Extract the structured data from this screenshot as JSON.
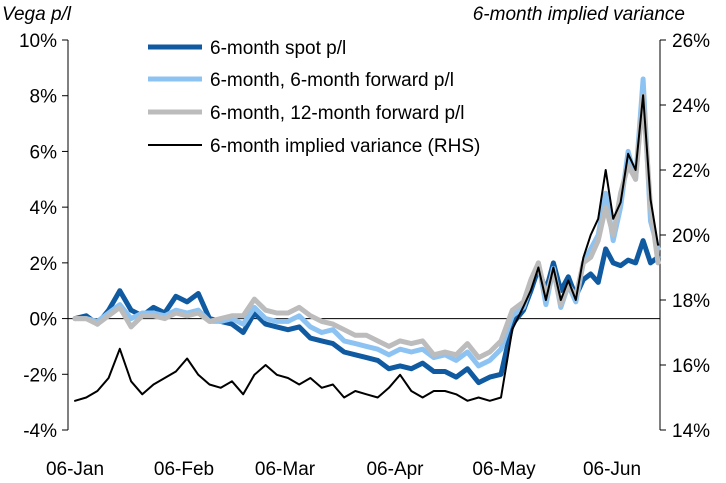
{
  "chart_data": {
    "type": "line",
    "title_left": "Vega p/l",
    "title_right": "6-month implied variance",
    "x_tick_labels": [
      "06-Jan",
      "06-Feb",
      "06-Mar",
      "06-Apr",
      "06-May",
      "06-Jun"
    ],
    "y_left": {
      "min": -0.04,
      "max": 0.1,
      "ticks": [
        -0.04,
        -0.02,
        0,
        0.02,
        0.04,
        0.06,
        0.08,
        0.1
      ],
      "tick_labels": [
        "-4%",
        "-2%",
        "0%",
        "2%",
        "4%",
        "6%",
        "8%",
        "10%"
      ]
    },
    "y_right": {
      "min": 0.14,
      "max": 0.26,
      "ticks": [
        0.14,
        0.16,
        0.18,
        0.2,
        0.22,
        0.24,
        0.26
      ],
      "tick_labels": [
        "14%",
        "16%",
        "18%",
        "20%",
        "22%",
        "24%",
        "26%"
      ]
    },
    "grid": false,
    "legend_position": "top-center",
    "x_range_days": [
      0,
      156
    ],
    "series": [
      {
        "name": "6-month spot p/l",
        "axis": "left",
        "color": "#0f5aa0",
        "stroke_width": 5,
        "x": [
          0,
          3,
          6,
          9,
          12,
          15,
          18,
          21,
          24,
          27,
          30,
          33,
          36,
          39,
          42,
          45,
          48,
          51,
          54,
          57,
          60,
          63,
          66,
          69,
          72,
          75,
          78,
          81,
          84,
          87,
          90,
          93,
          96,
          99,
          102,
          105,
          108,
          111,
          114,
          117,
          120,
          122,
          124,
          126,
          128,
          130,
          132,
          134,
          136,
          138,
          140,
          142,
          144,
          146,
          148,
          150,
          152,
          154,
          156
        ],
        "values": [
          0,
          0.001,
          -0.002,
          0.003,
          0.01,
          0.003,
          0.001,
          0.004,
          0.002,
          0.008,
          0.006,
          0.009,
          0,
          -0.001,
          -0.002,
          -0.005,
          0.002,
          -0.002,
          -0.003,
          -0.004,
          -0.003,
          -0.007,
          -0.008,
          -0.009,
          -0.012,
          -0.013,
          -0.014,
          -0.015,
          -0.018,
          -0.017,
          -0.018,
          -0.016,
          -0.019,
          -0.019,
          -0.021,
          -0.018,
          -0.023,
          -0.021,
          -0.02,
          -0.002,
          0.003,
          0.01,
          0.018,
          0.01,
          0.02,
          0.01,
          0.015,
          0.008,
          0.014,
          0.016,
          0.013,
          0.025,
          0.02,
          0.019,
          0.021,
          0.02,
          0.028,
          0.02,
          0.022
        ]
      },
      {
        "name": "6-month, 6-month forward p/l",
        "axis": "left",
        "color": "#8cc3f2",
        "stroke_width": 5,
        "x": [
          0,
          3,
          6,
          9,
          12,
          15,
          18,
          21,
          24,
          27,
          30,
          33,
          36,
          39,
          42,
          45,
          48,
          51,
          54,
          57,
          60,
          63,
          66,
          69,
          72,
          75,
          78,
          81,
          84,
          87,
          90,
          93,
          96,
          99,
          102,
          105,
          108,
          111,
          114,
          117,
          120,
          122,
          124,
          126,
          128,
          130,
          132,
          134,
          136,
          138,
          140,
          142,
          144,
          146,
          148,
          150,
          152,
          154,
          156
        ],
        "values": [
          0,
          0,
          -0.001,
          0.002,
          0.005,
          0,
          0.002,
          0.002,
          0.001,
          0.003,
          0.002,
          0.003,
          -0.001,
          -0.001,
          0,
          -0.002,
          0.004,
          0,
          -0.001,
          -0.001,
          0.001,
          -0.003,
          -0.005,
          -0.004,
          -0.008,
          -0.009,
          -0.01,
          -0.011,
          -0.013,
          -0.011,
          -0.012,
          -0.011,
          -0.014,
          -0.013,
          -0.015,
          -0.012,
          -0.017,
          -0.015,
          -0.011,
          0.001,
          0.004,
          0.012,
          0.02,
          0.005,
          0.018,
          0.004,
          0.012,
          0.006,
          0.02,
          0.025,
          0.03,
          0.045,
          0.028,
          0.04,
          0.06,
          0.05,
          0.086,
          0.035,
          0.025
        ]
      },
      {
        "name": "6-month, 12-month forward p/l",
        "axis": "left",
        "color": "#bcbcbc",
        "stroke_width": 5,
        "x": [
          0,
          3,
          6,
          9,
          12,
          15,
          18,
          21,
          24,
          27,
          30,
          33,
          36,
          39,
          42,
          45,
          48,
          51,
          54,
          57,
          60,
          63,
          66,
          69,
          72,
          75,
          78,
          81,
          84,
          87,
          90,
          93,
          96,
          99,
          102,
          105,
          108,
          111,
          114,
          117,
          120,
          122,
          124,
          126,
          128,
          130,
          132,
          134,
          136,
          138,
          140,
          142,
          144,
          146,
          148,
          150,
          152,
          154,
          156
        ],
        "values": [
          0,
          0,
          -0.002,
          0.001,
          0.004,
          -0.003,
          0.001,
          0.001,
          0,
          0.002,
          0.001,
          0.002,
          -0.001,
          0,
          0.001,
          0.001,
          0.007,
          0.003,
          0.002,
          0.002,
          0.004,
          0.001,
          -0.001,
          -0.002,
          -0.004,
          -0.006,
          -0.006,
          -0.008,
          -0.01,
          -0.008,
          -0.009,
          -0.008,
          -0.013,
          -0.012,
          -0.013,
          -0.009,
          -0.014,
          -0.012,
          -0.008,
          0.003,
          0.006,
          0.014,
          0.02,
          0.008,
          0.017,
          0.005,
          0.012,
          0.008,
          0.02,
          0.022,
          0.028,
          0.04,
          0.03,
          0.045,
          0.055,
          0.05,
          0.08,
          0.04,
          0.02
        ]
      },
      {
        "name": "6-month implied variance (RHS)",
        "axis": "right",
        "color": "#000000",
        "stroke_width": 2,
        "x": [
          0,
          3,
          6,
          9,
          12,
          15,
          18,
          21,
          24,
          27,
          30,
          33,
          36,
          39,
          42,
          45,
          48,
          51,
          54,
          57,
          60,
          63,
          66,
          69,
          72,
          75,
          78,
          81,
          84,
          87,
          90,
          93,
          96,
          99,
          102,
          105,
          108,
          111,
          114,
          117,
          120,
          122,
          124,
          126,
          128,
          130,
          132,
          134,
          136,
          138,
          140,
          142,
          144,
          146,
          148,
          150,
          152,
          154,
          156
        ],
        "values": [
          0.149,
          0.15,
          0.152,
          0.156,
          0.165,
          0.155,
          0.151,
          0.154,
          0.156,
          0.158,
          0.162,
          0.157,
          0.154,
          0.153,
          0.155,
          0.151,
          0.157,
          0.16,
          0.157,
          0.156,
          0.154,
          0.156,
          0.153,
          0.154,
          0.15,
          0.152,
          0.151,
          0.15,
          0.153,
          0.157,
          0.152,
          0.15,
          0.152,
          0.152,
          0.151,
          0.149,
          0.15,
          0.149,
          0.15,
          0.171,
          0.178,
          0.183,
          0.19,
          0.18,
          0.19,
          0.18,
          0.186,
          0.18,
          0.193,
          0.2,
          0.205,
          0.22,
          0.205,
          0.21,
          0.225,
          0.22,
          0.243,
          0.211,
          0.197
        ]
      }
    ]
  }
}
